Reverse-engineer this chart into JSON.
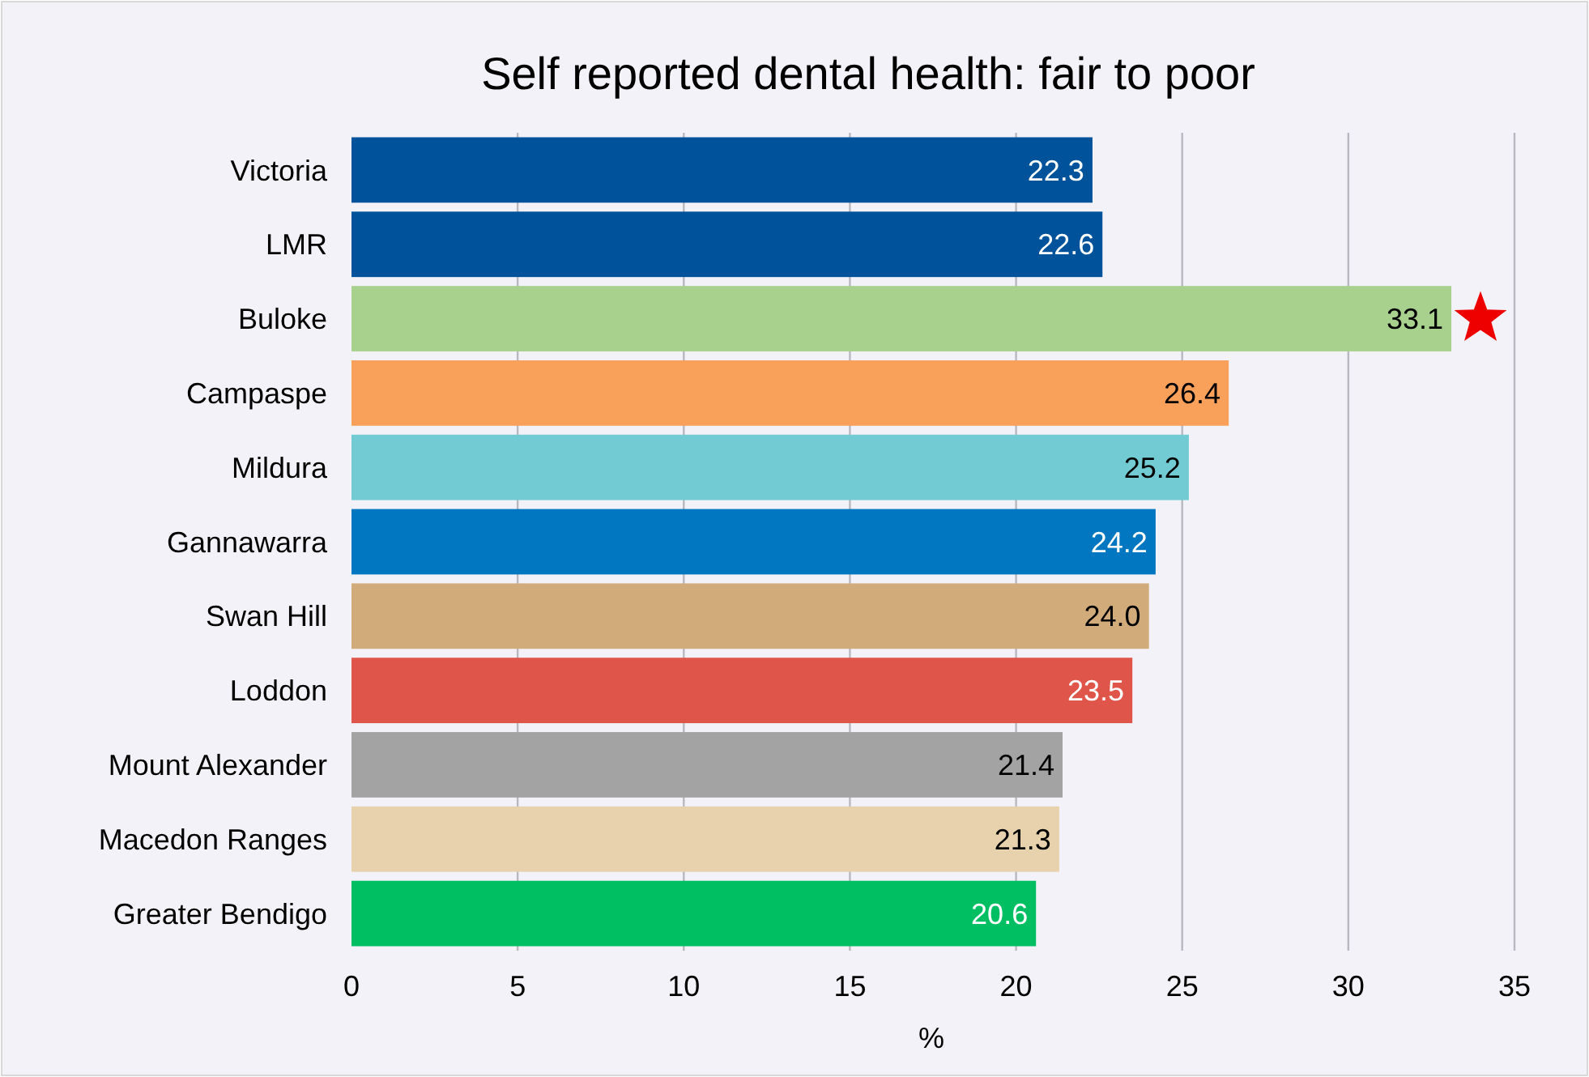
{
  "chart_data": {
    "type": "bar",
    "orientation": "horizontal",
    "title": "Self reported dental health: fair to poor",
    "xlabel": "%",
    "categories": [
      "Victoria",
      "LMR",
      "Buloke",
      "Campaspe",
      "Mildura",
      "Gannawarra",
      "Swan Hill",
      "Loddon",
      "Mount Alexander",
      "Macedon Ranges",
      "Greater Bendigo"
    ],
    "values": [
      22.3,
      22.6,
      33.1,
      26.4,
      25.2,
      24.2,
      24.0,
      23.5,
      21.4,
      21.3,
      20.6
    ],
    "value_labels": [
      "22.3",
      "22.6",
      "33.1",
      "26.4",
      "25.2",
      "24.2",
      "24.0",
      "23.5",
      "21.4",
      "21.3",
      "20.6"
    ],
    "colors": [
      "#00539b",
      "#00539b",
      "#a9d18e",
      "#f9a05a",
      "#72cbd3",
      "#0077c0",
      "#d1ab7a",
      "#e0554a",
      "#a3a3a3",
      "#e8d2ae",
      "#00bf63"
    ],
    "xlim": [
      0,
      35
    ],
    "xticks": [
      0,
      5,
      10,
      15,
      20,
      25,
      30,
      35
    ],
    "grid": "x"
  }
}
